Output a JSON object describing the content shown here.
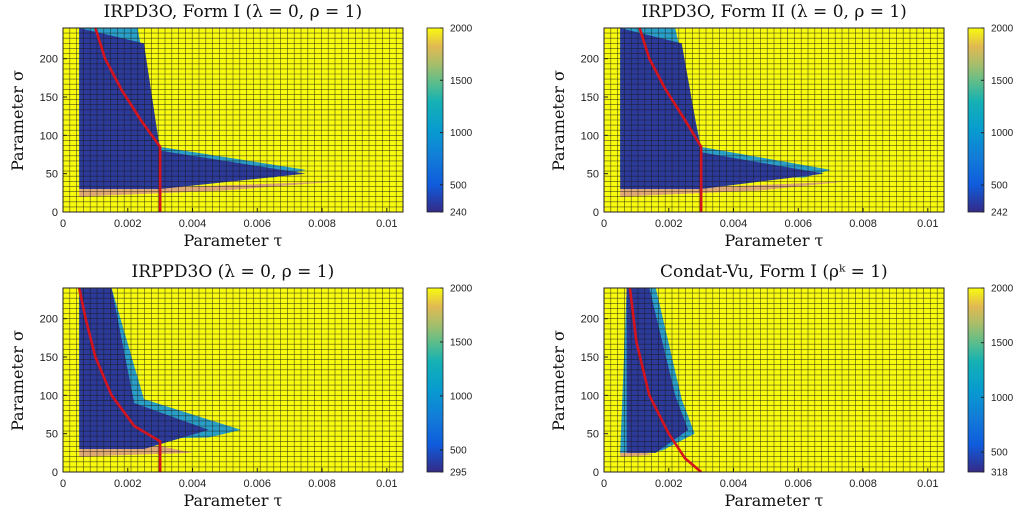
{
  "chart_data": [
    {
      "type": "heatmap",
      "title": "IRPD3O, Form I (λ = 0,  ρ = 1)",
      "xlabel": "Parameter τ",
      "ylabel": "Parameter σ",
      "xlim": [
        0,
        0.0105
      ],
      "ylim": [
        0,
        240
      ],
      "x_ticks": [
        "0",
        "0.002",
        "0.004",
        "0.006",
        "0.008",
        "0.01"
      ],
      "y_ticks": [
        "0",
        "50",
        "100",
        "150",
        "200"
      ],
      "colorbar_ticks": [
        "240",
        "500",
        "1000",
        "1500",
        "2000"
      ],
      "colorbar_range": [
        240,
        2000
      ],
      "background_value": 2000,
      "region_low": [
        [
          0.0005,
          240
        ],
        [
          0.0005,
          30
        ],
        [
          0.003,
          30
        ],
        [
          0.0075,
          50
        ],
        [
          0.003,
          80
        ],
        [
          0.0025,
          220
        ]
      ],
      "region_mid": [
        [
          0.0005,
          240
        ],
        [
          0.0005,
          45
        ],
        [
          0.0065,
          45
        ],
        [
          0.0075,
          55
        ],
        [
          0.003,
          85
        ],
        [
          0.0023,
          240
        ]
      ],
      "region_fringe": [
        [
          0.0005,
          30
        ],
        [
          0.0005,
          20
        ],
        [
          0.005,
          28
        ],
        [
          0.0085,
          40
        ],
        [
          0.003,
          32
        ]
      ],
      "optimal_path": [
        [
          0.001,
          240
        ],
        [
          0.0013,
          200
        ],
        [
          0.0018,
          160
        ],
        [
          0.0024,
          120
        ],
        [
          0.003,
          85
        ],
        [
          0.003,
          0
        ]
      ]
    },
    {
      "type": "heatmap",
      "title": "IRPD3O, Form II (λ = 0,  ρ = 1)",
      "xlabel": "Parameter τ",
      "ylabel": "Parameter σ",
      "xlim": [
        0,
        0.0105
      ],
      "ylim": [
        0,
        240
      ],
      "x_ticks": [
        "0",
        "0.002",
        "0.004",
        "0.006",
        "0.008",
        "0.01"
      ],
      "y_ticks": [
        "0",
        "50",
        "100",
        "150",
        "200"
      ],
      "colorbar_ticks": [
        "242",
        "500",
        "1000",
        "1500",
        "2000"
      ],
      "colorbar_range": [
        242,
        2000
      ],
      "background_value": 2000,
      "region_low": [
        [
          0.0005,
          240
        ],
        [
          0.0005,
          30
        ],
        [
          0.003,
          30
        ],
        [
          0.0068,
          50
        ],
        [
          0.003,
          78
        ],
        [
          0.0024,
          220
        ]
      ],
      "region_mid": [
        [
          0.0005,
          240
        ],
        [
          0.0005,
          45
        ],
        [
          0.0062,
          45
        ],
        [
          0.007,
          55
        ],
        [
          0.003,
          85
        ],
        [
          0.0022,
          240
        ]
      ],
      "region_fringe": [
        [
          0.0005,
          30
        ],
        [
          0.0005,
          20
        ],
        [
          0.0048,
          28
        ],
        [
          0.0075,
          40
        ],
        [
          0.003,
          32
        ]
      ],
      "optimal_path": [
        [
          0.0011,
          240
        ],
        [
          0.0014,
          200
        ],
        [
          0.0019,
          160
        ],
        [
          0.0025,
          120
        ],
        [
          0.003,
          85
        ],
        [
          0.003,
          0
        ]
      ]
    },
    {
      "type": "heatmap",
      "title": "IRPPD3O (λ = 0,  ρ = 1)",
      "xlabel": "Parameter τ",
      "ylabel": "Parameter σ",
      "xlim": [
        0,
        0.0105
      ],
      "ylim": [
        0,
        240
      ],
      "x_ticks": [
        "0",
        "0.002",
        "0.004",
        "0.006",
        "0.008",
        "0.01"
      ],
      "y_ticks": [
        "0",
        "50",
        "100",
        "150",
        "200"
      ],
      "colorbar_ticks": [
        "295",
        "500",
        "1000",
        "1500",
        "2000"
      ],
      "colorbar_range": [
        295,
        2000
      ],
      "background_value": 2000,
      "region_low": [
        [
          0.0005,
          240
        ],
        [
          0.0005,
          30
        ],
        [
          0.0025,
          30
        ],
        [
          0.0045,
          55
        ],
        [
          0.0022,
          90
        ],
        [
          0.0015,
          240
        ]
      ],
      "region_mid": [
        [
          0.0005,
          240
        ],
        [
          0.0005,
          42
        ],
        [
          0.0045,
          45
        ],
        [
          0.0055,
          55
        ],
        [
          0.0025,
          95
        ],
        [
          0.0015,
          240
        ]
      ],
      "region_fringe": [
        [
          0.0005,
          30
        ],
        [
          0.0005,
          20
        ],
        [
          0.004,
          25
        ],
        [
          0.003,
          34
        ]
      ],
      "optimal_path": [
        [
          0.0005,
          240
        ],
        [
          0.0007,
          200
        ],
        [
          0.001,
          150
        ],
        [
          0.0015,
          100
        ],
        [
          0.0022,
          60
        ],
        [
          0.003,
          40
        ],
        [
          0.003,
          0
        ]
      ]
    },
    {
      "type": "heatmap",
      "title": "Condat-Vu, Form I (ρᵏ = 1)",
      "xlabel": "Parameter τ",
      "ylabel": "Parameter σ",
      "xlim": [
        0,
        0.0105
      ],
      "ylim": [
        0,
        240
      ],
      "x_ticks": [
        "0",
        "0.002",
        "0.004",
        "0.006",
        "0.008",
        "0.01"
      ],
      "y_ticks": [
        "0",
        "50",
        "100",
        "150",
        "200"
      ],
      "colorbar_ticks": [
        "318",
        "500",
        "1000",
        "1500",
        "2000"
      ],
      "colorbar_range": [
        318,
        2000
      ],
      "background_value": 2000,
      "region_low": [
        [
          0.0007,
          240
        ],
        [
          0.0007,
          25
        ],
        [
          0.0016,
          25
        ],
        [
          0.0026,
          55
        ],
        [
          0.0022,
          100
        ],
        [
          0.0014,
          240
        ]
      ],
      "region_mid": [
        [
          0.0007,
          240
        ],
        [
          0.0005,
          25
        ],
        [
          0.0018,
          28
        ],
        [
          0.0028,
          50
        ],
        [
          0.0024,
          95
        ],
        [
          0.0016,
          240
        ]
      ],
      "region_fringe": [
        [
          0.0005,
          30
        ],
        [
          0.0005,
          20
        ],
        [
          0.0015,
          22
        ],
        [
          0.001,
          30
        ]
      ],
      "optimal_path": [
        [
          0.0008,
          240
        ],
        [
          0.001,
          170
        ],
        [
          0.0014,
          100
        ],
        [
          0.002,
          50
        ],
        [
          0.0025,
          18
        ],
        [
          0.003,
          0
        ]
      ]
    }
  ]
}
